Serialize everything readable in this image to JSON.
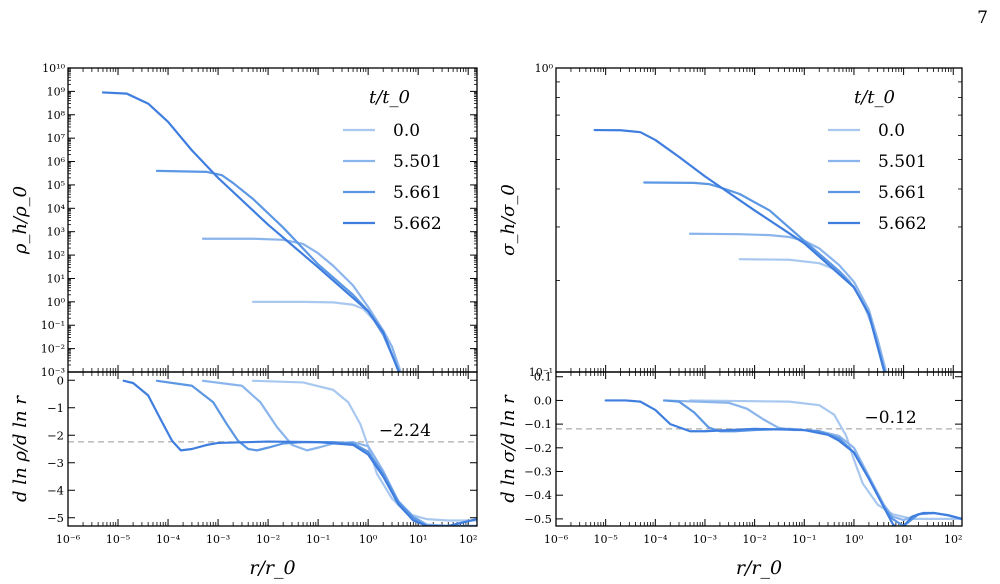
{
  "page_number": "7",
  "colors": {
    "series": [
      "#a9c8f0",
      "#8ab4ec",
      "#5c97e4",
      "#3f7edf"
    ],
    "reference_line": "#999999",
    "axes": "#000000"
  },
  "chart_data": [
    {
      "id": "density-profile",
      "type": "line",
      "xlabel": "",
      "ylabel": "ρ_h/ρ_0",
      "xscale": "log",
      "yscale": "log",
      "xlim": [
        1e-06,
        150
      ],
      "ylim": [
        0.001,
        10000000000.0
      ],
      "x_tick_labels_shown": false,
      "legend": {
        "title": "t/t_0",
        "entries": [
          "0.0",
          "5.501",
          "5.661",
          "5.662"
        ],
        "location": "top-right"
      },
      "series": [
        {
          "name": "0.0",
          "x": [
            0.005,
            0.05,
            0.2,
            0.5,
            0.8,
            1.5,
            3,
            4.5
          ],
          "y": [
            1,
            1,
            0.95,
            0.75,
            0.5,
            0.12,
            0.012,
            0.001
          ]
        },
        {
          "name": "5.501",
          "x": [
            0.0005,
            0.005,
            0.02,
            0.05,
            0.1,
            0.2,
            0.5,
            1,
            2,
            3,
            4.3
          ],
          "y": [
            500,
            500,
            450,
            300,
            120,
            35,
            5,
            0.6,
            0.06,
            0.012,
            0.001
          ]
        },
        {
          "name": "5.661",
          "x": [
            6e-05,
            0.0006,
            0.0012,
            0.002,
            0.005,
            0.02,
            0.1,
            0.5,
            1,
            2,
            4.2
          ],
          "y": [
            400000,
            360000,
            260000,
            120000,
            25000,
            1500,
            40,
            2,
            0.4,
            0.04,
            0.001
          ]
        },
        {
          "name": "5.662",
          "x": [
            5e-06,
            1.5e-05,
            4e-05,
            0.0001,
            0.0003,
            0.001,
            0.01,
            0.1,
            1,
            2,
            4.1
          ],
          "y": [
            900000000.0,
            800000000.0,
            300000000.0,
            50000000.0,
            3000000.0,
            200000,
            2000,
            30,
            0.4,
            0.05,
            0.001
          ]
        }
      ]
    },
    {
      "id": "density-slope",
      "type": "line",
      "xlabel": "r/r_0",
      "ylabel": "d ln ρ/d ln r",
      "xscale": "log",
      "yscale": "linear",
      "xlim": [
        1e-06,
        150
      ],
      "ylim": [
        -5.3,
        0.3
      ],
      "y_ticks": [
        0,
        -1,
        -2,
        -3,
        -4,
        -5
      ],
      "reference": {
        "value": -2.24,
        "label": "−2.24"
      },
      "series": [
        {
          "name": "0.0",
          "x": [
            0.005,
            0.05,
            0.2,
            0.4,
            0.7,
            1,
            1.5,
            3,
            6,
            15,
            40,
            150
          ],
          "y": [
            -0.02,
            -0.08,
            -0.35,
            -0.8,
            -1.6,
            -2.4,
            -3.4,
            -4.3,
            -4.85,
            -5.05,
            -5.1,
            -5.1
          ]
        },
        {
          "name": "5.501",
          "x": [
            0.0005,
            0.003,
            0.007,
            0.015,
            0.03,
            0.06,
            0.1,
            0.2,
            0.5,
            1,
            2,
            4,
            8,
            15,
            40,
            150
          ],
          "y": [
            -0.02,
            -0.2,
            -0.8,
            -1.7,
            -2.35,
            -2.55,
            -2.45,
            -2.3,
            -2.25,
            -2.4,
            -3.3,
            -4.4,
            -4.95,
            -5.25,
            -5.3,
            -5.3
          ]
        },
        {
          "name": "5.661",
          "x": [
            6e-05,
            0.0003,
            0.0008,
            0.0015,
            0.0025,
            0.004,
            0.006,
            0.01,
            0.02,
            0.05,
            0.2,
            0.5,
            1,
            2,
            4,
            8,
            15,
            40,
            150
          ],
          "y": [
            -0.02,
            -0.2,
            -0.8,
            -1.6,
            -2.2,
            -2.5,
            -2.55,
            -2.45,
            -2.3,
            -2.25,
            -2.25,
            -2.3,
            -2.6,
            -3.4,
            -4.4,
            -5.0,
            -5.3,
            -5.3,
            -5.3
          ]
        },
        {
          "name": "5.662",
          "x": [
            1.3e-05,
            2e-05,
            4e-05,
            7e-05,
            0.00012,
            0.00018,
            0.0003,
            0.0006,
            0.001,
            0.01,
            0.1,
            0.5,
            1,
            2,
            4,
            8,
            15,
            40,
            150
          ],
          "y": [
            -0.02,
            -0.1,
            -0.55,
            -1.4,
            -2.2,
            -2.55,
            -2.5,
            -2.35,
            -2.28,
            -2.23,
            -2.25,
            -2.35,
            -2.7,
            -3.5,
            -4.5,
            -5.1,
            -5.3,
            -5.3,
            -5.05
          ]
        }
      ]
    },
    {
      "id": "dispersion-profile",
      "type": "line",
      "xlabel": "",
      "ylabel": "σ_h/σ_0",
      "xscale": "log",
      "yscale": "log",
      "xlim": [
        1e-06,
        150
      ],
      "ylim": [
        0.1,
        1
      ],
      "x_tick_labels_shown": false,
      "legend": {
        "title": "t/t_0",
        "entries": [
          "0.0",
          "5.501",
          "5.661",
          "5.662"
        ],
        "location": "top-right"
      },
      "series": [
        {
          "name": "0.0",
          "x": [
            0.005,
            0.05,
            0.2,
            0.5,
            0.8,
            1.5,
            3,
            4.5
          ],
          "y": [
            0.235,
            0.234,
            0.228,
            0.215,
            0.2,
            0.17,
            0.128,
            0.1
          ]
        },
        {
          "name": "5.501",
          "x": [
            0.0005,
            0.005,
            0.02,
            0.05,
            0.1,
            0.2,
            0.5,
            1,
            2,
            3,
            4.3
          ],
          "y": [
            0.285,
            0.284,
            0.282,
            0.278,
            0.27,
            0.255,
            0.225,
            0.198,
            0.16,
            0.128,
            0.1
          ]
        },
        {
          "name": "5.661",
          "x": [
            6e-05,
            0.0006,
            0.0012,
            0.002,
            0.005,
            0.02,
            0.1,
            0.5,
            1,
            2,
            4.2
          ],
          "y": [
            0.42,
            0.419,
            0.415,
            0.405,
            0.385,
            0.34,
            0.27,
            0.215,
            0.19,
            0.155,
            0.1
          ]
        },
        {
          "name": "5.662",
          "x": [
            6e-06,
            2e-05,
            5e-05,
            0.0001,
            0.0003,
            0.001,
            0.01,
            0.1,
            1,
            2,
            4.1
          ],
          "y": [
            0.625,
            0.624,
            0.615,
            0.58,
            0.51,
            0.44,
            0.34,
            0.265,
            0.19,
            0.155,
            0.1
          ]
        }
      ]
    },
    {
      "id": "dispersion-slope",
      "type": "line",
      "xlabel": "r/r_0",
      "ylabel": "d ln σ/d ln r",
      "xscale": "log",
      "yscale": "linear",
      "xlim": [
        1e-06,
        150
      ],
      "ylim": [
        -0.53,
        0.12
      ],
      "y_ticks": [
        0.1,
        0.0,
        -0.1,
        -0.2,
        -0.3,
        -0.4,
        -0.5
      ],
      "reference": {
        "value": -0.12,
        "label": "−0.12"
      },
      "series": [
        {
          "name": "0.0",
          "x": [
            0.0005,
            0.05,
            0.2,
            0.4,
            0.7,
            1,
            1.5,
            3,
            6,
            15,
            40,
            150
          ],
          "y": [
            0.0,
            -0.005,
            -0.02,
            -0.06,
            -0.15,
            -0.25,
            -0.35,
            -0.44,
            -0.48,
            -0.5,
            -0.5,
            -0.5
          ]
        },
        {
          "name": "5.501",
          "x": [
            0.00015,
            0.003,
            0.007,
            0.015,
            0.03,
            0.06,
            0.1,
            0.2,
            0.5,
            1,
            2,
            4,
            6,
            10,
            20,
            40,
            80,
            150
          ],
          "y": [
            0.0,
            -0.01,
            -0.035,
            -0.08,
            -0.115,
            -0.125,
            -0.125,
            -0.13,
            -0.15,
            -0.2,
            -0.32,
            -0.44,
            -0.49,
            -0.505,
            -0.48,
            -0.475,
            -0.485,
            -0.5
          ]
        },
        {
          "name": "5.661",
          "x": [
            0.00015,
            0.0003,
            0.0006,
            0.0012,
            0.002,
            0.004,
            0.01,
            0.05,
            0.2,
            0.5,
            1,
            2,
            4,
            6,
            10,
            20,
            40,
            80,
            150
          ],
          "y": [
            0.0,
            -0.005,
            -0.05,
            -0.115,
            -0.13,
            -0.13,
            -0.125,
            -0.12,
            -0.13,
            -0.16,
            -0.22,
            -0.33,
            -0.45,
            -0.5,
            -0.53,
            -0.48,
            -0.475,
            -0.485,
            -0.5
          ]
        },
        {
          "name": "5.662",
          "x": [
            1e-05,
            2.5e-05,
            5e-05,
            0.0001,
            0.0002,
            0.0005,
            0.001,
            0.01,
            0.1,
            0.3,
            0.5,
            1,
            2,
            4,
            6,
            8,
            10,
            15,
            25,
            40,
            80,
            150
          ],
          "y": [
            0.0,
            0.0,
            -0.005,
            -0.04,
            -0.1,
            -0.13,
            -0.13,
            -0.12,
            -0.125,
            -0.145,
            -0.17,
            -0.22,
            -0.33,
            -0.45,
            -0.52,
            -0.55,
            -0.53,
            -0.49,
            -0.475,
            -0.475,
            -0.485,
            -0.5
          ]
        }
      ]
    }
  ]
}
